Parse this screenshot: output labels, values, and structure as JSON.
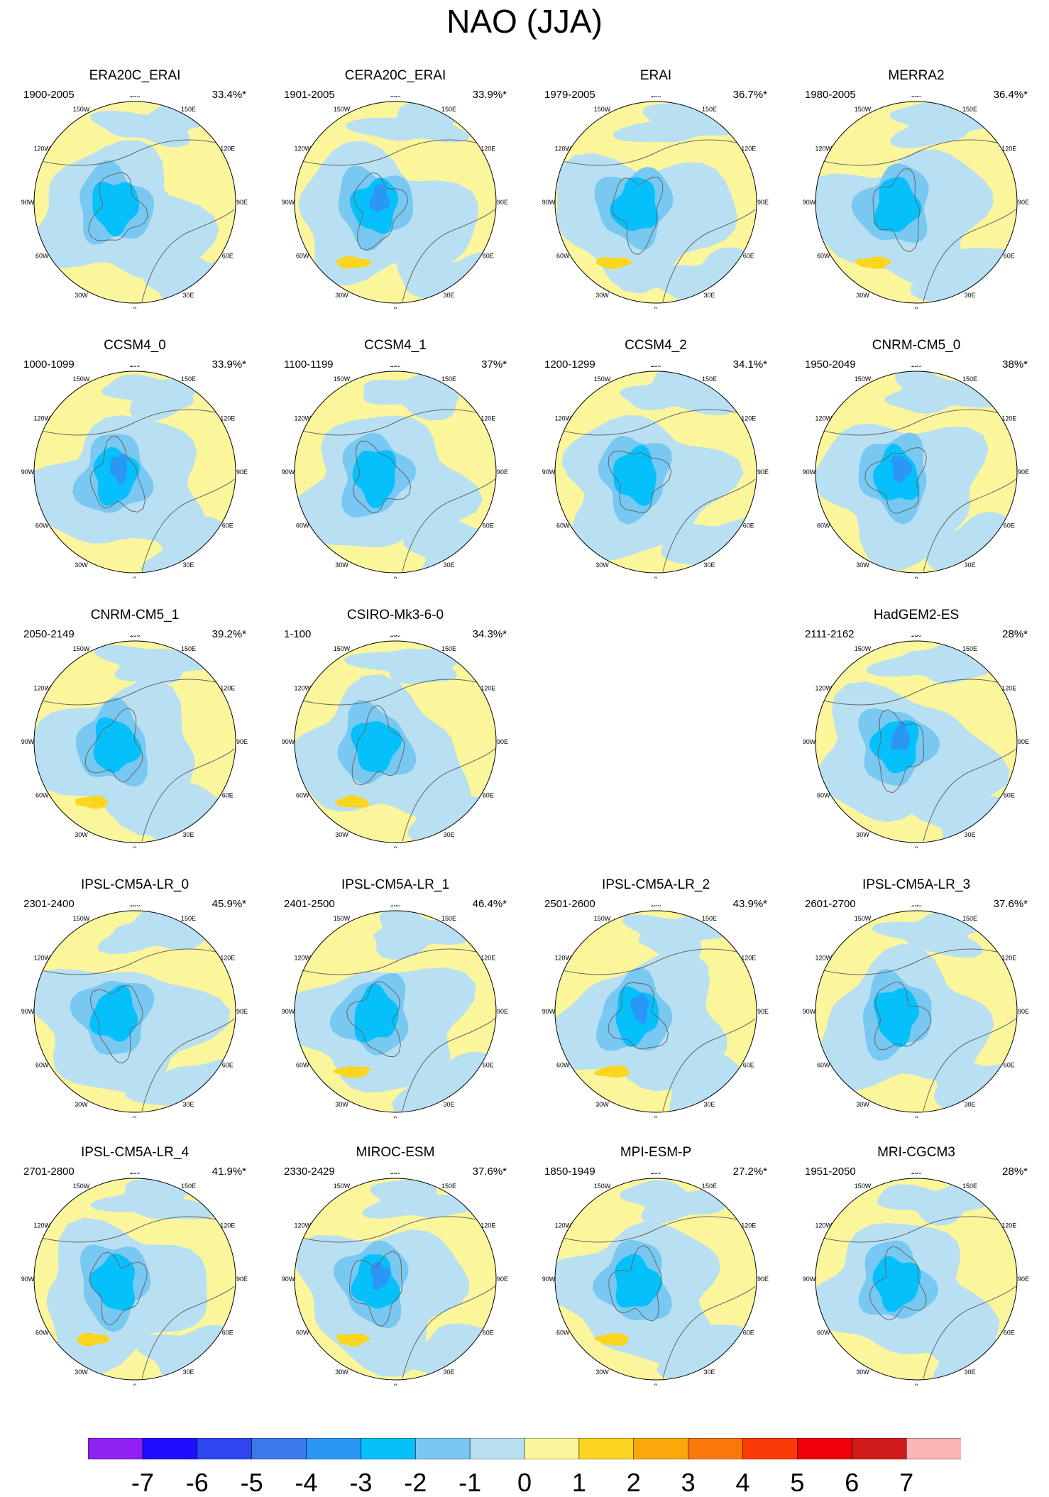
{
  "title": "NAO (JJA)",
  "longitude_labels": [
    "180",
    "150E",
    "120E",
    "90E",
    "60E",
    "30E",
    "0",
    "30W",
    "60W",
    "90W",
    "120W",
    "150W"
  ],
  "panels": [
    {
      "name": "ERA20C_ERAI",
      "years": "1900-2005",
      "variance": "33.4%*"
    },
    {
      "name": "CERA20C_ERAI",
      "years": "1901-2005",
      "variance": "33.9%*"
    },
    {
      "name": "ERAI",
      "years": "1979-2005",
      "variance": "36.7%*"
    },
    {
      "name": "MERRA2",
      "years": "1980-2005",
      "variance": "36.4%*"
    },
    {
      "name": "CCSM4_0",
      "years": "1000-1099",
      "variance": "33.9%*"
    },
    {
      "name": "CCSM4_1",
      "years": "1100-1199",
      "variance": "37%*"
    },
    {
      "name": "CCSM4_2",
      "years": "1200-1299",
      "variance": "34.1%*"
    },
    {
      "name": "CNRM-CM5_0",
      "years": "1950-2049",
      "variance": "38%*"
    },
    {
      "name": "CNRM-CM5_1",
      "years": "2050-2149",
      "variance": "39.2%*"
    },
    {
      "name": "CSIRO-Mk3-6-0",
      "years": "1-100",
      "variance": "34.3%*"
    },
    {
      "name": "HadGEM2-ES",
      "years": "2111-2162",
      "variance": "28%*"
    },
    {
      "name": "IPSL-CM5A-LR_0",
      "years": "2301-2400",
      "variance": "45.9%*"
    },
    {
      "name": "IPSL-CM5A-LR_1",
      "years": "2401-2500",
      "variance": "46.4%*"
    },
    {
      "name": "IPSL-CM5A-LR_2",
      "years": "2501-2600",
      "variance": "43.9%*"
    },
    {
      "name": "IPSL-CM5A-LR_3",
      "years": "2601-2700",
      "variance": "37.6%*"
    },
    {
      "name": "IPSL-CM5A-LR_4",
      "years": "2701-2800",
      "variance": "41.9%*"
    },
    {
      "name": "MIROC-ESM",
      "years": "2330-2429",
      "variance": "37.6%*"
    },
    {
      "name": "MPI-ESM-P",
      "years": "1850-1949",
      "variance": "27.2%*"
    },
    {
      "name": "MRI-CGCM3",
      "years": "1951-2050",
      "variance": "28%*"
    }
  ],
  "colorbar": {
    "colors": [
      "#8f22f0",
      "#1f0dff",
      "#2d46f0",
      "#3a78ec",
      "#2a97f5",
      "#06c0fb",
      "#78c8f2",
      "#b8e0f2",
      "#fbf59c",
      "#fcd520",
      "#fca80a",
      "#fb7808",
      "#fc3a06",
      "#f00008",
      "#d01a1a",
      "#fcb4b4"
    ],
    "labels": [
      "-7",
      "-6",
      "-5",
      "-4",
      "-3",
      "-2",
      "-1",
      "0",
      "1",
      "2",
      "3",
      "4",
      "5",
      "6",
      "7"
    ]
  }
}
